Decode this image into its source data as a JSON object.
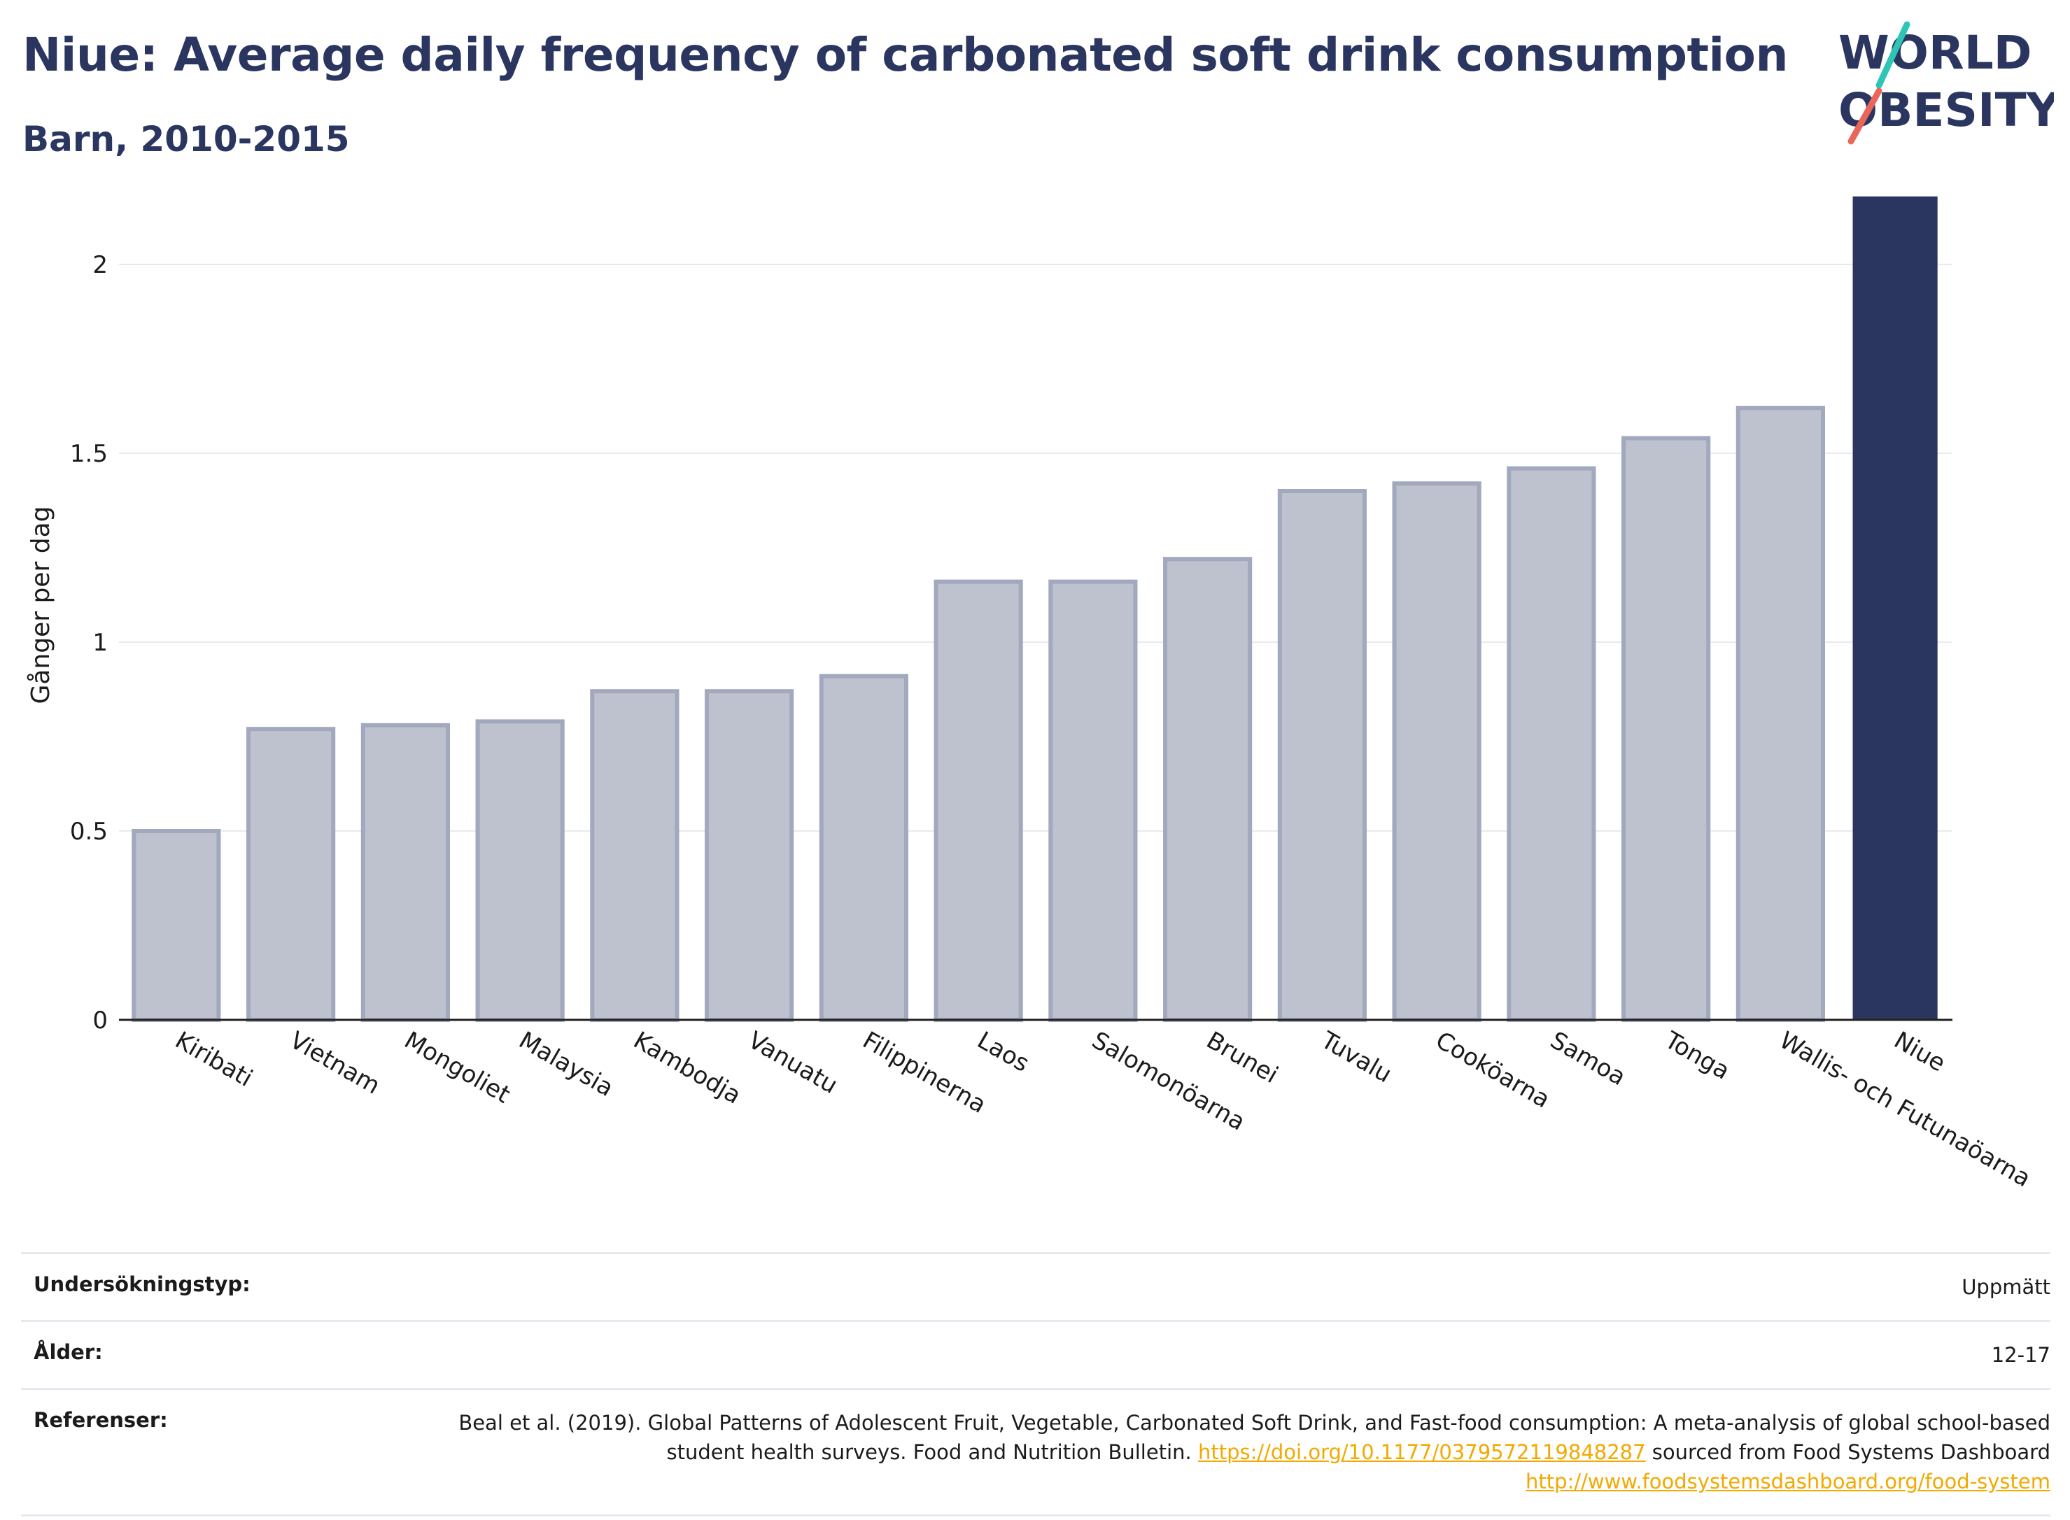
{
  "title": "Niue: Average daily frequency of carbonated soft drink consumption",
  "subtitle": "Barn, 2010-2015",
  "logo": {
    "line1": "WORLD",
    "line2": "OBESITY",
    "colors": {
      "text": "#2b3660",
      "slash_top": "#2ec4b6",
      "slash_bottom": "#e8675a"
    }
  },
  "chart_data": {
    "type": "bar",
    "title": "Niue: Average daily frequency of carbonated soft drink consumption",
    "ylabel": "Gånger per dag",
    "xlabel": "",
    "ylim": [
      0,
      2.2
    ],
    "yticks": [
      0,
      0.5,
      1,
      1.5,
      2
    ],
    "ytick_labels": [
      "0",
      "0.5",
      "1",
      "1.5",
      "2"
    ],
    "grid": true,
    "categories": [
      "Kiribati",
      "Vietnam",
      "Mongoliet",
      "Malaysia",
      "Kambodja",
      "Vanuatu",
      "Filippinerna",
      "Laos",
      "Salomonöarna",
      "Brunei",
      "Tuvalu",
      "Cooköarna",
      "Samoa",
      "Tonga",
      "Wallis- och Futunaöarna",
      "Niue"
    ],
    "values": [
      0.5,
      0.77,
      0.78,
      0.79,
      0.87,
      0.87,
      0.91,
      1.16,
      1.16,
      1.22,
      1.4,
      1.42,
      1.46,
      1.54,
      1.62,
      2.18
    ],
    "highlight": "Niue",
    "colors": {
      "bar": "#bec2cf",
      "bar_edge": "#a2a8bd",
      "highlight": "#2b3660"
    }
  },
  "info": {
    "survey_type_label": "Undersökningstyp:",
    "survey_type_value": "Uppmätt",
    "age_label": "Ålder:",
    "age_value": "12-17",
    "refs_label": "Referenser:",
    "refs_text1": "Beal et al. (2019). Global Patterns of Adolescent Fruit, Vegetable, Carbonated Soft Drink, and Fast-food consumption: A meta-analysis of global school-based student health surveys. Food and Nutrition Bulletin.",
    "refs_link1": "https://doi.org/10.1177/0379572119848287",
    "refs_text2": "sourced from Food Systems Dashboard",
    "refs_link2": "http://www.foodsystemsdashboard.org/food-system"
  }
}
